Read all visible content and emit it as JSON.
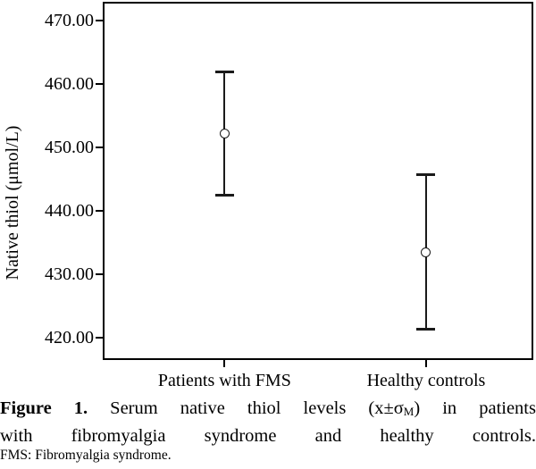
{
  "figure": {
    "caption": {
      "line1": {
        "label": "Figure 1.",
        "pre": " Serum native thiol levels (x±σ",
        "sub": "M",
        "post": ") in patients"
      },
      "line2": "with fibromyalgia syndrome and healthy controls.",
      "footnote": "FMS: Fibromyalgia syndrome."
    }
  },
  "chart_data": {
    "type": "scatter",
    "style": "mean-with-error-bars",
    "title": "",
    "xlabel": "",
    "ylabel": "Native thiol (μmol/L)",
    "ylim": [
      416.5,
      473.0
    ],
    "grid": false,
    "frame": "full-box",
    "legend": "none",
    "marker": "open-circle",
    "categories": [
      "Patients with FMS",
      "Healthy controls"
    ],
    "series": [
      {
        "label": "Patients with FMS",
        "mean": 452.2,
        "upper": 462.0,
        "lower": 442.5,
        "x_frac": 0.283
      },
      {
        "label": "Healthy controls",
        "mean": 433.5,
        "upper": 445.8,
        "lower": 421.4,
        "x_frac": 0.751
      }
    ],
    "yticks": [
      {
        "value": 470,
        "label": "470.00"
      },
      {
        "value": 460,
        "label": "460.00"
      },
      {
        "value": 450,
        "label": "450.00"
      },
      {
        "value": 440,
        "label": "440.00"
      },
      {
        "value": 430,
        "label": "430.00"
      },
      {
        "value": 420,
        "label": "420.00"
      }
    ],
    "colors": {
      "line": "#1a1a1a",
      "axis": "#000000",
      "background": "#ffffff"
    }
  }
}
